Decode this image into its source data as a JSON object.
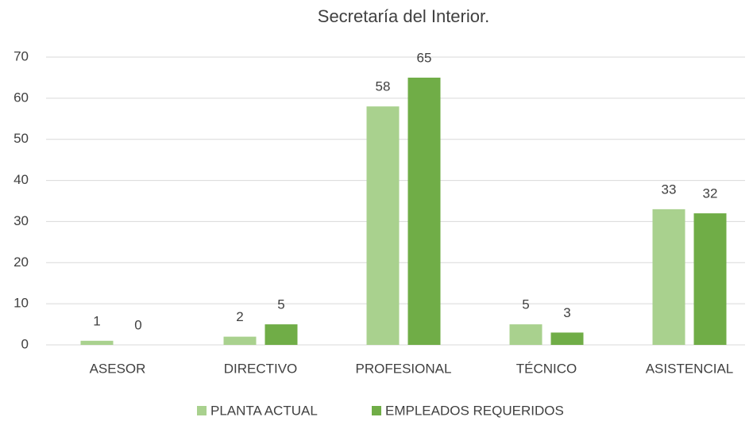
{
  "chart_data": {
    "type": "bar",
    "title": "Secretaría del Interior.",
    "categories": [
      "ASESOR",
      "DIRECTIVO",
      "PROFESIONAL",
      "TÉCNICO",
      "ASISTENCIAL"
    ],
    "series": [
      {
        "name": "PLANTA ACTUAL",
        "color": "#a9d18e",
        "values": [
          1,
          2,
          58,
          5,
          33
        ]
      },
      {
        "name": "EMPLEADOS REQUERIDOS",
        "color": "#70ad47",
        "values": [
          0,
          5,
          65,
          3,
          32
        ]
      }
    ],
    "ylim": [
      0,
      70
    ],
    "yticks": [
      0,
      10,
      20,
      30,
      40,
      50,
      60,
      70
    ],
    "grid": true,
    "legend": "bottom"
  }
}
